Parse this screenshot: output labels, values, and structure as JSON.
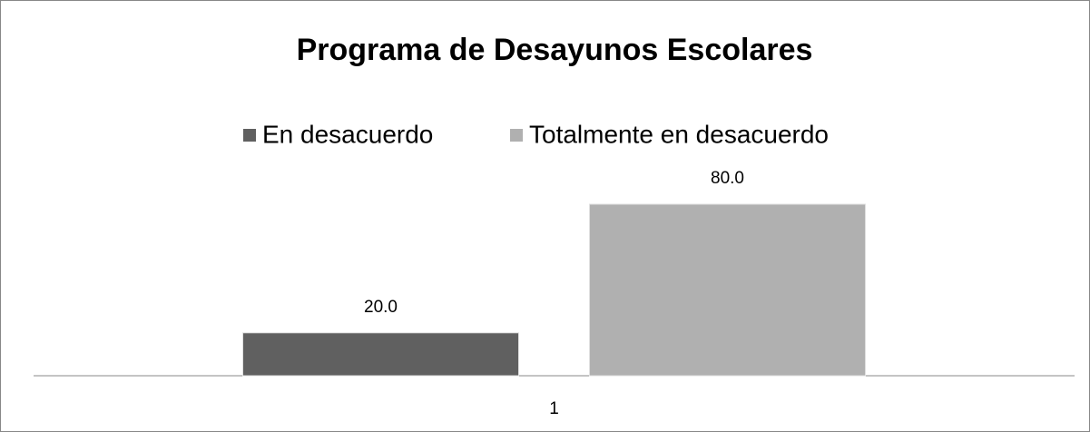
{
  "chart_data": {
    "type": "bar",
    "title": "Programa de Desayunos Escolares",
    "categories": [
      "1"
    ],
    "series": [
      {
        "name": "En desacuerdo",
        "color": "#606060",
        "values": [
          20
        ],
        "value_labels": [
          "20.0"
        ]
      },
      {
        "name": "Totalmente en desacuerdo",
        "color": "#b0b0b0",
        "values": [
          80
        ],
        "value_labels": [
          "80.0"
        ]
      }
    ],
    "ylim": [
      0,
      90
    ],
    "legend": "top"
  }
}
